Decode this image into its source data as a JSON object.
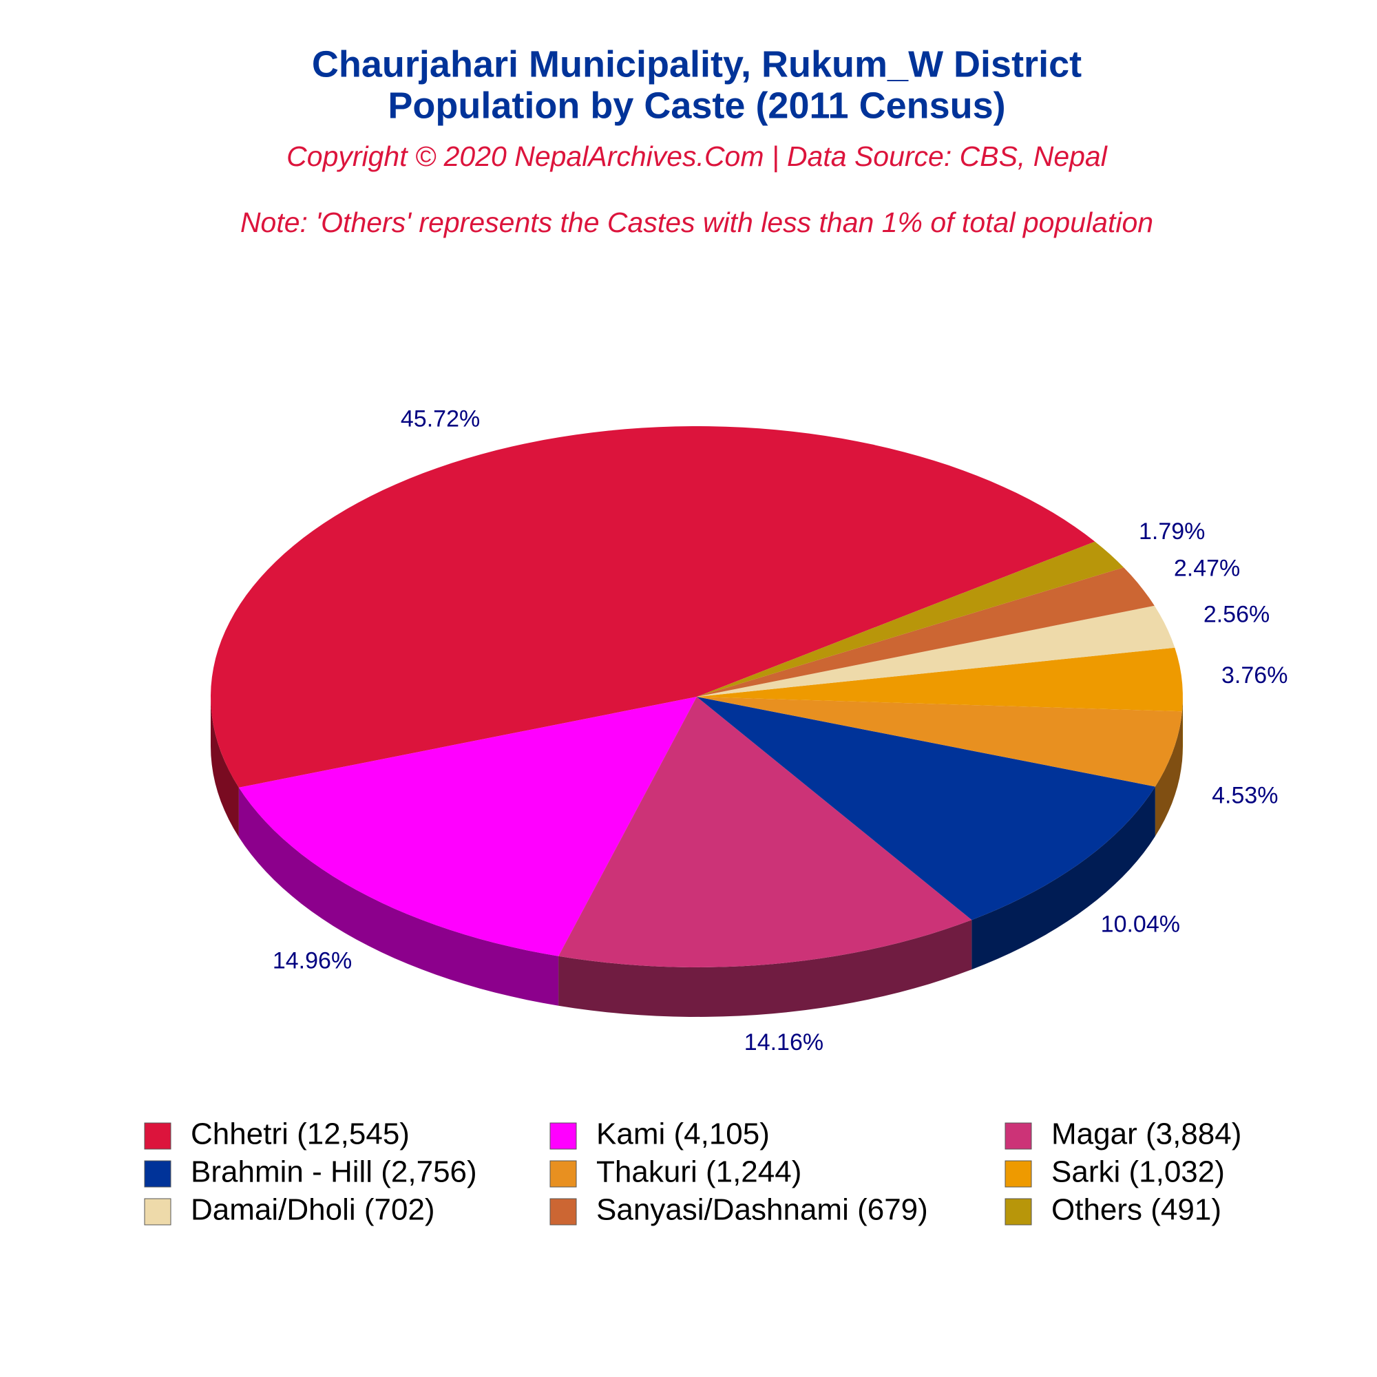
{
  "chart_data": {
    "type": "pie3d",
    "title": [
      "Chaurjahari Municipality, Rukum_W District",
      "Population by Caste (2011 Census)"
    ],
    "subtitle": "Copyright © 2020 NepalArchives.Com | Data Source: CBS, Nepal",
    "note": "Note: 'Others' represents the Castes with less than 1% of total population",
    "categories": [
      "Chhetri (12,545)",
      "Kami (4,105)",
      "Magar (3,884)",
      "Brahmin - Hill (2,756)",
      "Thakuri (1,244)",
      "Sarki (1,032)",
      "Damai/Dholi (702)",
      "Sanyasi/Dashnami (679)",
      "Others (491)"
    ],
    "values": [
      45.72,
      14.96,
      14.16,
      10.04,
      4.53,
      3.76,
      2.56,
      2.47,
      1.79
    ],
    "value_labels": [
      "45.72%",
      "14.96%",
      "14.16%",
      "10.04%",
      "4.53%",
      "3.76%",
      "2.56%",
      "2.47%",
      "1.79%"
    ],
    "colors": [
      "#dc143c",
      "#ff00ff",
      "#cc3377",
      "#003399",
      "#e89020",
      "#ee9a00",
      "#eedaaa",
      "#cc6633",
      "#b8960a"
    ],
    "legend": "bottom"
  }
}
